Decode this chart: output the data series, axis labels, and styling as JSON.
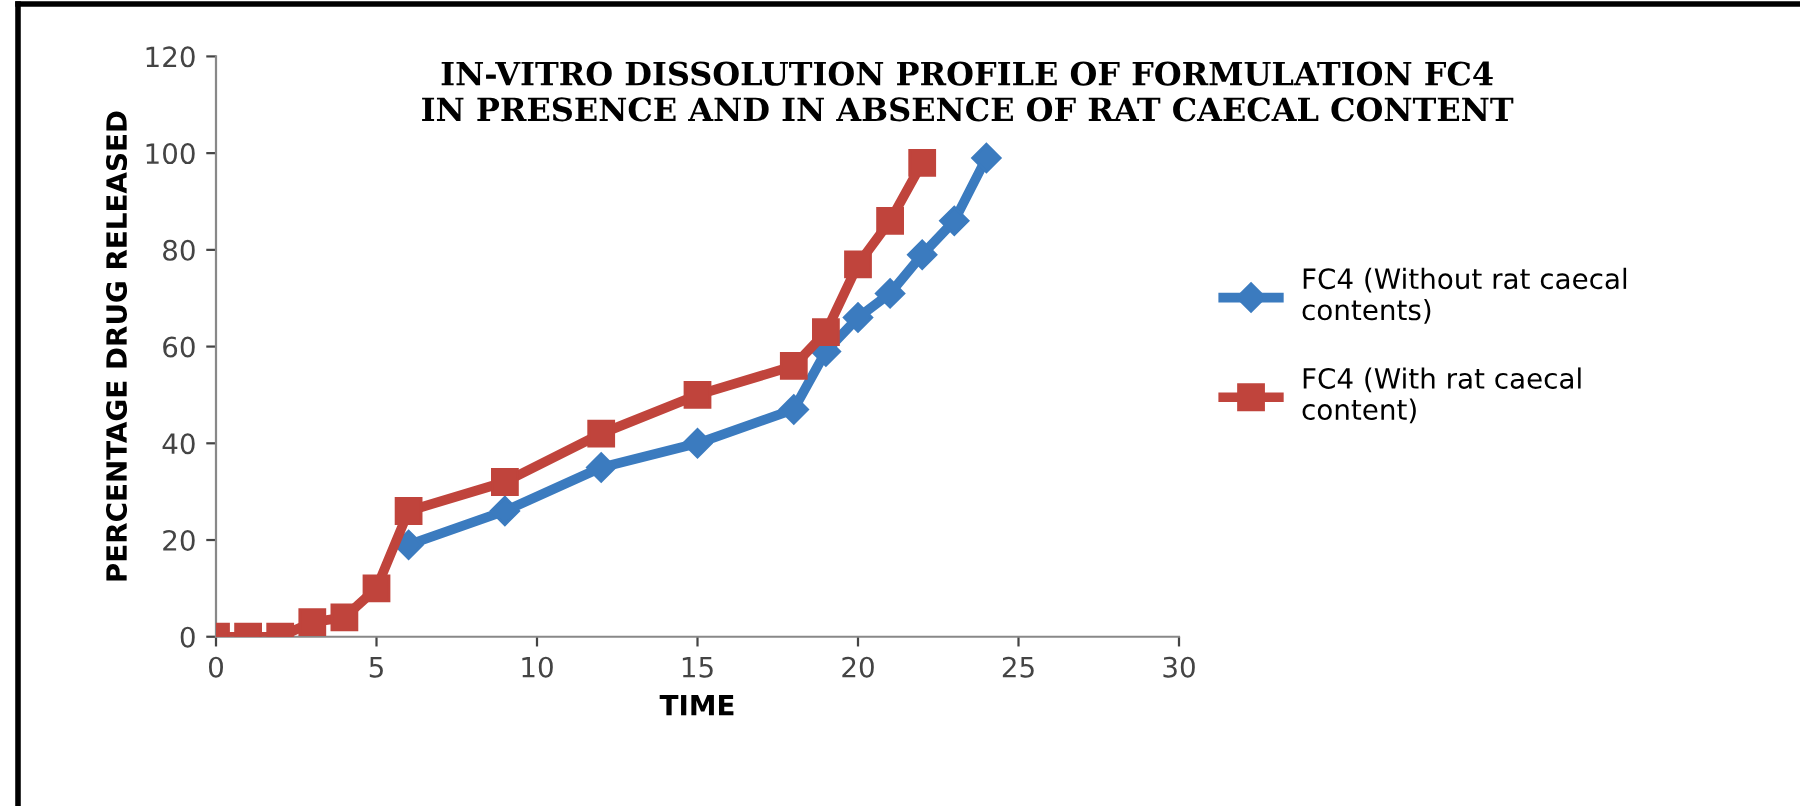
{
  "chart_data": {
    "type": "line",
    "title": "IN-VITRO DISSOLUTION PROFILE OF FORMULATION FC4\nIN PRESENCE AND IN ABSENCE OF RAT CAECAL CONTENT",
    "xlabel": "TIME",
    "ylabel": "PERCENTAGE DRUG RELEASED",
    "xlim": [
      0,
      30
    ],
    "xticks": [
      0,
      5,
      10,
      15,
      20,
      25,
      30
    ],
    "ylim": [
      0,
      120
    ],
    "yticks": [
      0,
      20,
      40,
      60,
      80,
      100,
      120
    ],
    "grid": false,
    "legend": "right",
    "line_style": "solid",
    "series": [
      {
        "name": "FC4 (Without rat caecal\ncontents)",
        "color": "#3b7bbf",
        "marker": "diamond",
        "x": [
          6,
          9,
          12,
          15,
          18,
          19,
          20,
          21,
          22,
          23,
          24
        ],
        "values": [
          19,
          26,
          35,
          40,
          47,
          59,
          66,
          71,
          79,
          86,
          99
        ]
      },
      {
        "name": "FC4 (With rat caecal\ncontent)",
        "color": "#c0443c",
        "marker": "square",
        "x": [
          0,
          1,
          2,
          3,
          4,
          5,
          6,
          9,
          12,
          15,
          18,
          19,
          20,
          21,
          22
        ],
        "values": [
          0,
          0,
          0,
          3,
          4,
          10,
          26,
          32,
          42,
          50,
          56,
          63,
          77,
          86,
          98
        ]
      }
    ]
  }
}
